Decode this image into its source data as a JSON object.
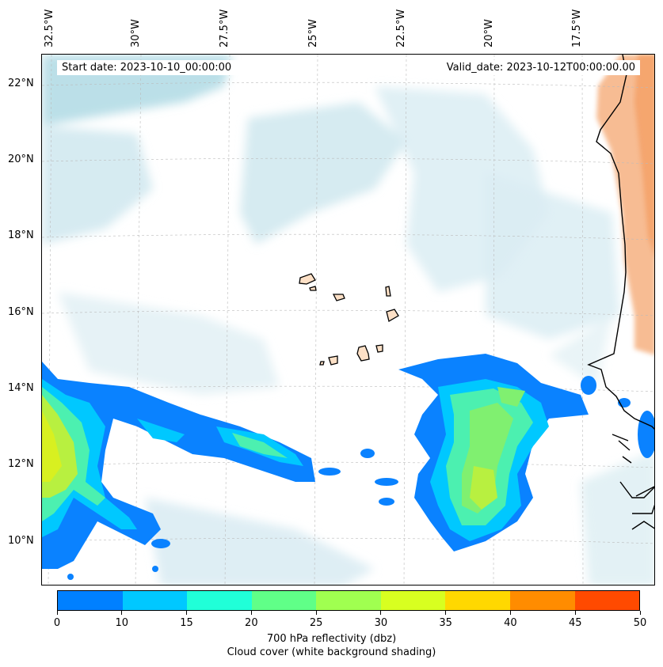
{
  "map": {
    "start_date": "Start date: 2023-10-10_00:00:00",
    "valid_date": "Valid_date: 2023-10-12T00:00:00.00",
    "lon_labels": [
      "32.5°W",
      "30°W",
      "27.5°W",
      "25°W",
      "22.5°W",
      "20°W",
      "17.5°W"
    ],
    "lat_labels": [
      "22°N",
      "20°N",
      "18°N",
      "16°N",
      "14°N",
      "12°N",
      "10°N"
    ],
    "extent": {
      "lon_min": -32.6,
      "lon_max": -15.2,
      "lat_min": 8.9,
      "lat_max": 22.7
    }
  },
  "colorbar": {
    "ticks": [
      "0",
      "10",
      "15",
      "20",
      "25",
      "30",
      "35",
      "40",
      "45",
      "50"
    ],
    "colors": [
      "#0080ff",
      "#00c8ff",
      "#20ffd8",
      "#60ff88",
      "#a0ff50",
      "#d8ff20",
      "#ffd800",
      "#ff8c00",
      "#ff4a00"
    ],
    "label_line1": "700 hPa reflectivity (dbz)",
    "label_line2": "Cloud cover (white background shading)"
  }
}
